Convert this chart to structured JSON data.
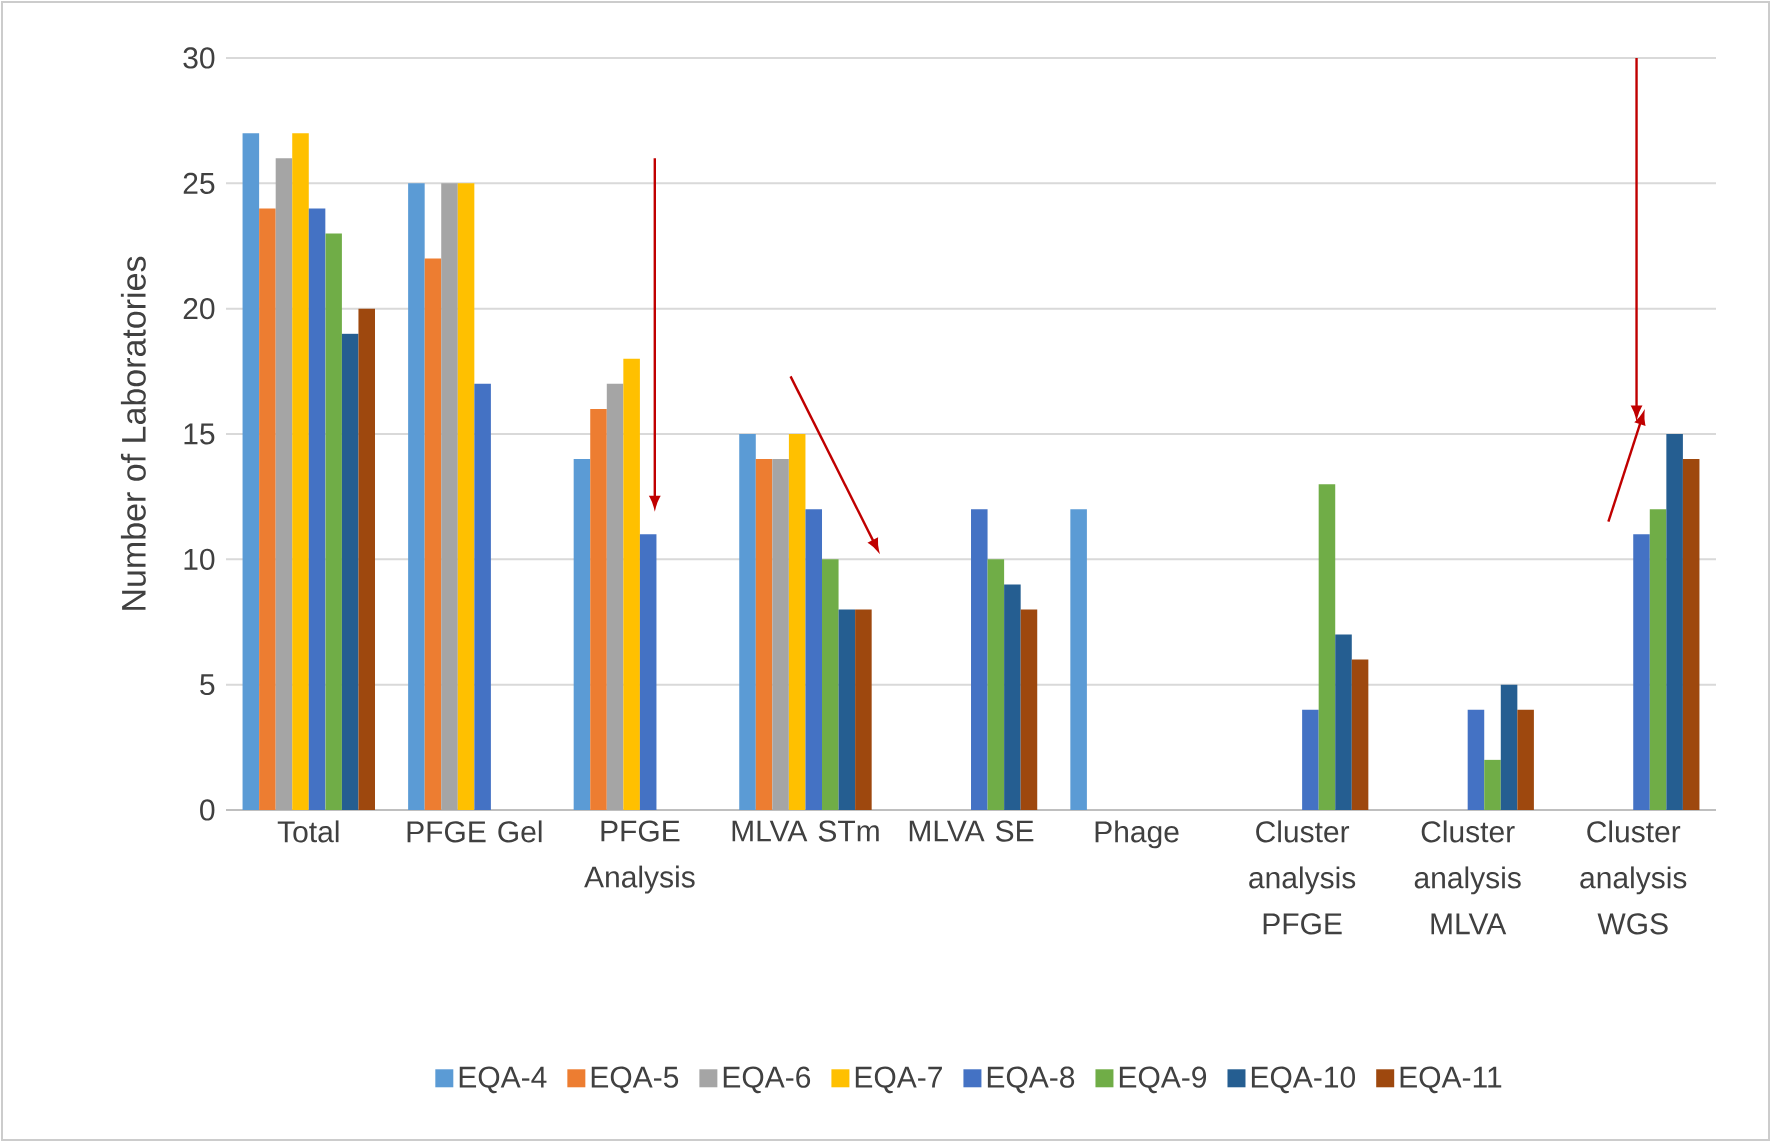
{
  "chart_data": {
    "type": "bar",
    "ylabel": "Number of Laboratories",
    "categories": [
      "Total",
      "PFGE Gel",
      "PFGE Analysis",
      "MLVA STm",
      "MLVA SE",
      "Phage",
      "Cluster analysis PFGE",
      "Cluster analysis MLVA",
      "Cluster analysis WGS"
    ],
    "ylim": [
      0,
      30
    ],
    "yticks": [
      0,
      5,
      10,
      15,
      20,
      25,
      30
    ],
    "grid": "y",
    "legend": "bottom",
    "series": [
      {
        "name": "EQA-4",
        "color": "#5b9bd5",
        "values": [
          27,
          25,
          14,
          15,
          null,
          12,
          null,
          null,
          null
        ]
      },
      {
        "name": "EQA-5",
        "color": "#ed7d31",
        "values": [
          24,
          22,
          16,
          14,
          null,
          null,
          null,
          null,
          null
        ]
      },
      {
        "name": "EQA-6",
        "color": "#a5a5a5",
        "values": [
          26,
          25,
          17,
          14,
          null,
          null,
          null,
          null,
          null
        ]
      },
      {
        "name": "EQA-7",
        "color": "#ffc000",
        "values": [
          27,
          25,
          18,
          15,
          null,
          null,
          null,
          null,
          null
        ]
      },
      {
        "name": "EQA-8",
        "color": "#4472c4",
        "values": [
          24,
          17,
          11,
          12,
          12,
          null,
          4,
          4,
          11
        ]
      },
      {
        "name": "EQA-9",
        "color": "#70ad47",
        "values": [
          23,
          null,
          null,
          10,
          10,
          null,
          13,
          2,
          12
        ]
      },
      {
        "name": "EQA-10",
        "color": "#255e91",
        "values": [
          19,
          null,
          null,
          8,
          9,
          null,
          7,
          5,
          15
        ]
      },
      {
        "name": "EQA-11",
        "color": "#9e480e",
        "values": [
          20,
          null,
          null,
          8,
          8,
          null,
          6,
          4,
          14
        ]
      }
    ]
  }
}
